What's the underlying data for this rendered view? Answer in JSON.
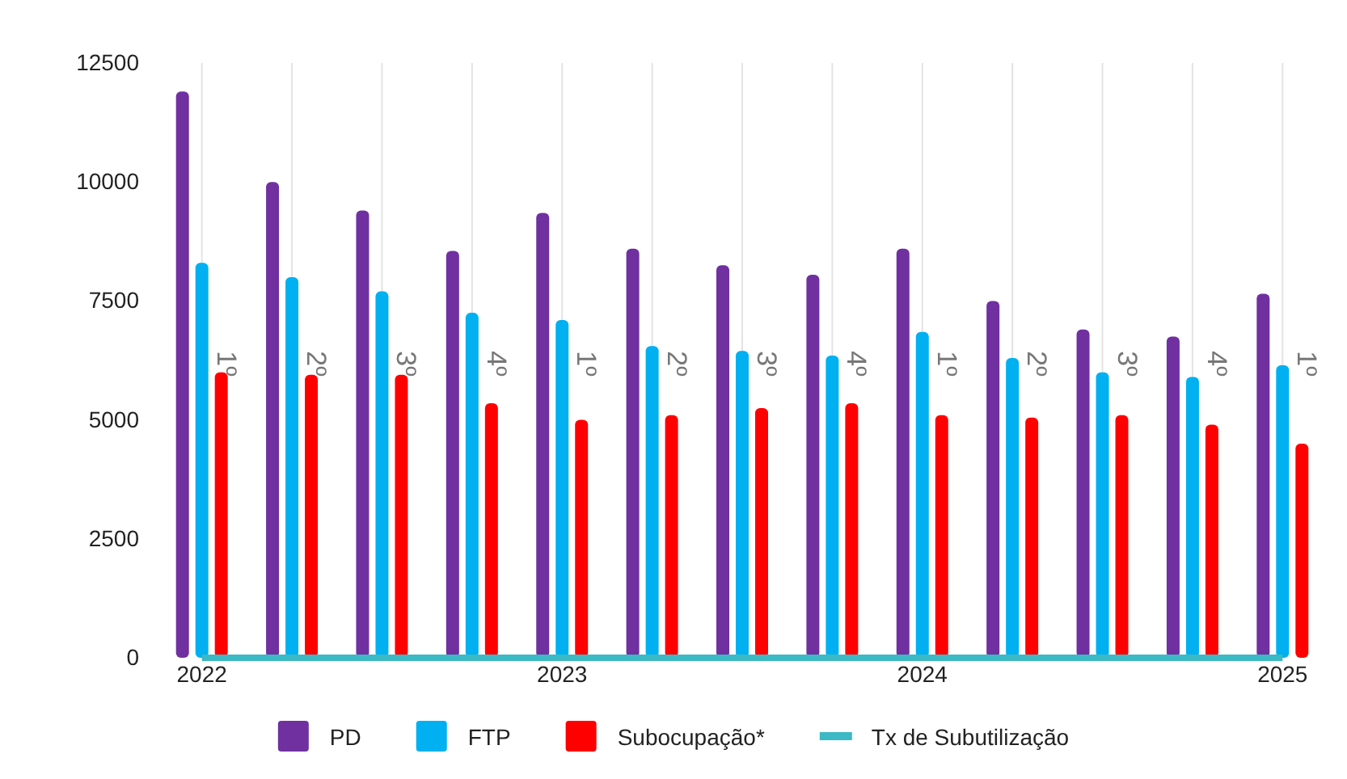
{
  "chart_data": {
    "type": "bar",
    "categories": [
      "2022",
      null,
      null,
      null,
      "2023",
      null,
      null,
      null,
      "2024",
      null,
      null,
      null,
      "2025"
    ],
    "series": [
      {
        "name": "PD",
        "color": "#7030a0",
        "values": [
          11900,
          10000,
          9400,
          8550,
          9350,
          8600,
          8250,
          8050,
          8600,
          7500,
          6900,
          6750,
          7650
        ]
      },
      {
        "name": "FTP",
        "color": "#00b0f0",
        "values": [
          8300,
          8000,
          7700,
          7250,
          7100,
          6550,
          6450,
          6350,
          6850,
          6300,
          6000,
          5900,
          6150
        ]
      },
      {
        "name": "Subocupação*",
        "color": "#ff0000",
        "values": [
          6000,
          5950,
          5950,
          5350,
          5000,
          5100,
          5250,
          5350,
          5100,
          5050,
          5100,
          4900,
          4500
        ]
      },
      {
        "name": "Tx de Subutilização",
        "type": "line",
        "color": "#3bb9c4",
        "values": [
          0,
          0,
          0,
          0,
          0,
          0,
          0,
          0,
          0,
          0,
          0,
          0,
          0
        ]
      }
    ],
    "annotations": [
      "1º",
      "2º",
      "3º",
      "4º",
      "1º",
      "2º",
      "3º",
      "4º",
      "1º",
      "2º",
      "3º",
      "4º",
      "1º"
    ],
    "ylim": [
      0,
      12500
    ],
    "yticks": [
      0,
      2500,
      5000,
      7500,
      10000,
      12500
    ],
    "grid": "x",
    "legend": "bottom",
    "marker": "none",
    "line_style": "solid"
  }
}
